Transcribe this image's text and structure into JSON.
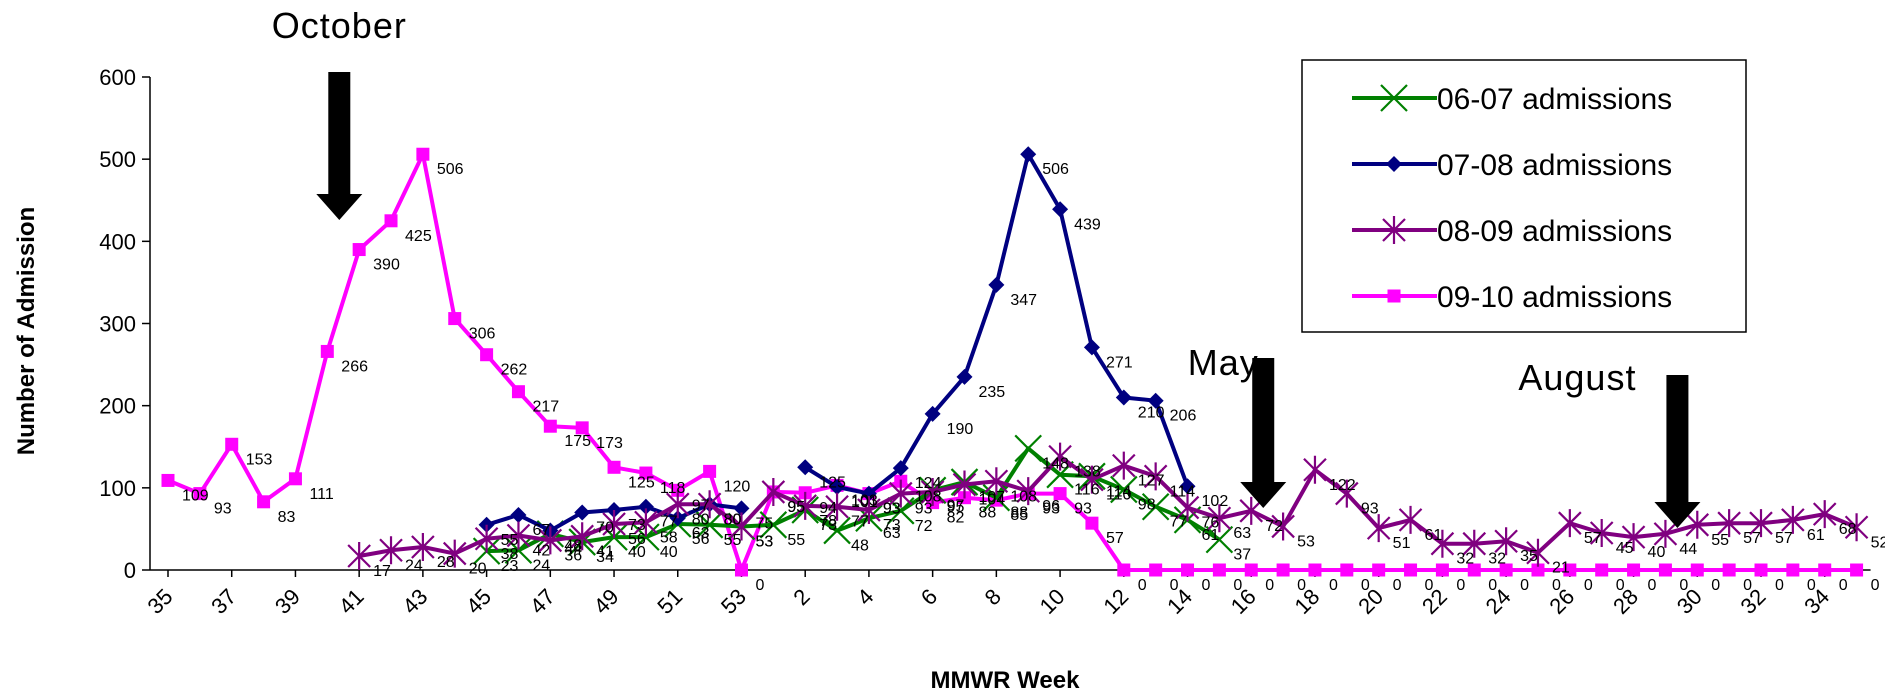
{
  "chart_data": {
    "type": "line",
    "title": "",
    "xlabel": "MMWR Week",
    "ylabel": "Number of Admission",
    "ylim": [
      0,
      600
    ],
    "yticks": [
      0,
      100,
      200,
      300,
      400,
      500,
      600
    ],
    "x_tick_labels": [
      "35",
      "37",
      "39",
      "41",
      "43",
      "45",
      "47",
      "49",
      "51",
      "53",
      "2",
      "4",
      "6",
      "8",
      "10",
      "12",
      "14",
      "16",
      "18",
      "20",
      "22",
      "24",
      "26",
      "28",
      "30",
      "32",
      "34"
    ],
    "categories": [
      "35",
      "36",
      "37",
      "38",
      "39",
      "40",
      "41",
      "42",
      "43",
      "44",
      "45",
      "46",
      "47",
      "48",
      "49",
      "50",
      "51",
      "52",
      "53",
      "1",
      "2",
      "3",
      "4",
      "5",
      "6",
      "7",
      "8",
      "9",
      "10",
      "11",
      "12",
      "13",
      "14",
      "15",
      "16",
      "17",
      "18",
      "19",
      "20",
      "21",
      "22",
      "23",
      "24",
      "25",
      "26",
      "27",
      "28",
      "29",
      "30",
      "31",
      "32",
      "33",
      "34",
      "35"
    ],
    "legend_position": "top-right",
    "grid": false,
    "series": [
      {
        "name": "06-07 admissions",
        "color": "#008000",
        "marker": "x",
        "values": [
          null,
          null,
          null,
          null,
          null,
          null,
          null,
          null,
          null,
          null,
          23,
          24,
          44,
          34,
          40,
          40,
          56,
          55,
          53,
          55,
          73,
          48,
          63,
          72,
          97,
          107,
          88,
          148,
          116,
          114,
          98,
          77,
          61,
          37,
          null,
          null,
          null,
          null,
          null,
          null,
          null,
          null,
          null,
          null,
          null,
          null,
          null,
          null,
          null,
          null,
          null,
          null,
          null,
          null
        ]
      },
      {
        "name": "07-08 admissions",
        "color": "#000080",
        "marker": "diamond",
        "values": [
          null,
          null,
          null,
          null,
          null,
          null,
          null,
          null,
          null,
          null,
          55,
          67,
          48,
          70,
          73,
          77,
          63,
          80,
          75,
          null,
          125,
          101,
          93,
          124,
          190,
          235,
          347,
          506,
          439,
          271,
          210,
          206,
          102,
          null,
          null,
          null,
          null,
          null,
          null,
          null,
          null,
          null,
          null,
          null,
          null,
          null,
          null,
          null,
          null,
          null,
          null,
          null,
          null,
          null
        ]
      },
      {
        "name": "08-09 admissions",
        "color": "#800080",
        "marker": "star",
        "values": [
          null,
          null,
          null,
          null,
          null,
          null,
          17,
          24,
          28,
          20,
          38,
          42,
          36,
          41,
          56,
          58,
          80,
          80,
          53,
          95,
          78,
          77,
          73,
          93,
          95,
          104,
          108,
          96,
          138,
          110,
          127,
          114,
          76,
          63,
          72,
          53,
          122,
          93,
          51,
          61,
          32,
          32,
          35,
          21,
          57,
          45,
          40,
          44,
          55,
          57,
          57,
          61,
          68,
          52
        ]
      },
      {
        "name": "09-10 admissions",
        "color": "#ff00ff",
        "marker": "square",
        "values": [
          109,
          93,
          153,
          83,
          111,
          266,
          390,
          425,
          506,
          306,
          262,
          217,
          175,
          173,
          125,
          118,
          97,
          120,
          0,
          95,
          94,
          103,
          93,
          108,
          82,
          88,
          85,
          93,
          93,
          57,
          0,
          0,
          0,
          0,
          0,
          0,
          0,
          0,
          0,
          0,
          0,
          0,
          0,
          0,
          0,
          0,
          0,
          0,
          0,
          0,
          0,
          0,
          0,
          0
        ]
      }
    ],
    "data_labels": {
      "06-07 admissions": [
        null,
        null,
        null,
        null,
        null,
        null,
        null,
        null,
        null,
        null,
        "23",
        "24",
        "44",
        "34",
        "40",
        "40",
        "56",
        "55",
        "53",
        "55",
        "73",
        "48",
        "63",
        "72",
        "97",
        "107",
        "88",
        "148",
        "116",
        "114",
        "98",
        "77",
        "61",
        "37"
      ],
      "07-08 admissions": [
        null,
        null,
        null,
        null,
        null,
        null,
        null,
        null,
        null,
        null,
        "55",
        "67",
        "48",
        "70",
        "73",
        "77",
        "63",
        "80",
        "75",
        null,
        "125",
        "101",
        "93",
        "124",
        "190",
        "235",
        "347",
        "506",
        "439",
        "271",
        "210",
        "206",
        "102"
      ],
      "08-09 admissions": [
        null,
        null,
        null,
        null,
        null,
        null,
        "17",
        "24",
        "28",
        "20",
        "38",
        "42",
        "36",
        "41",
        "56",
        "58",
        "80",
        "80",
        "53",
        "95",
        "78",
        "77",
        "73",
        "93",
        "95",
        "104",
        "108",
        "96",
        "138",
        "110",
        "127",
        "114",
        "76",
        "63",
        "72",
        "53",
        "122",
        "93",
        "51",
        "61",
        "32",
        "32",
        "35",
        "21",
        "57",
        "45",
        "40",
        "44",
        "55",
        "57",
        "57",
        "61",
        "68",
        "52"
      ],
      "09-10 admissions": [
        "109",
        "93",
        "153",
        "83",
        "111",
        "266",
        "390",
        "425",
        "506",
        "306",
        "262",
        "217",
        "175",
        "173",
        "125",
        "118",
        "97",
        "120",
        "0",
        "95",
        "94",
        "103",
        "93",
        "108",
        "82",
        "88",
        "85",
        "93",
        "93",
        "57",
        "0",
        "0",
        "0",
        "0",
        "0",
        "0",
        "0",
        "0",
        "0",
        "0",
        "0",
        "0",
        "0",
        "0",
        "0",
        "0",
        "0",
        "0",
        "0",
        "0",
        "0",
        "0",
        "0",
        "0"
      ]
    },
    "annotations": [
      {
        "text": "October",
        "category": "40"
      },
      {
        "text": "May",
        "category": "16"
      },
      {
        "text": "August",
        "category": "29"
      }
    ]
  }
}
